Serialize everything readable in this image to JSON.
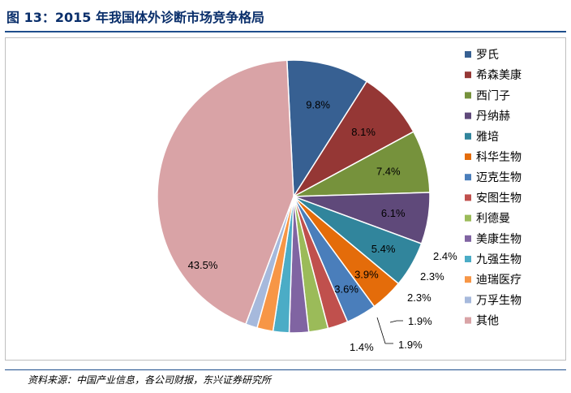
{
  "title": "图 13：2015 年我国体外诊断市场竞争格局",
  "source": "资料来源：中国产业信息，各公司财报，东兴证券研究所",
  "chart_data": {
    "type": "pie",
    "start_angle_deg": 267.2,
    "direction": "clockwise",
    "legend_position": "right",
    "categories": [
      "罗氏",
      "希森美康",
      "西门子",
      "丹纳赫",
      "雅培",
      "科华生物",
      "迈克生物",
      "安图生物",
      "利德曼",
      "美康生物",
      "九强生物",
      "迪瑞医疗",
      "万孚生物",
      "其他"
    ],
    "values": [
      9.8,
      8.1,
      7.4,
      6.1,
      5.4,
      3.9,
      3.6,
      2.4,
      2.3,
      2.3,
      1.9,
      1.9,
      1.4,
      43.5
    ],
    "labels": [
      "9.8%",
      "8.1%",
      "7.4%",
      "6.1%",
      "5.4%",
      "3.9%",
      "3.6%",
      "2.4%",
      "2.3%",
      "2.3%",
      "1.9%",
      "1.9%",
      "1.4%",
      "43.5%"
    ],
    "colors": [
      "#376092",
      "#953735",
      "#76923c",
      "#5f497a",
      "#31859c",
      "#e46c0a",
      "#4a7ebb",
      "#c0504d",
      "#9bbb59",
      "#8064a2",
      "#4bacc6",
      "#f79646",
      "#a6b9dc",
      "#d9a3a6"
    ]
  }
}
